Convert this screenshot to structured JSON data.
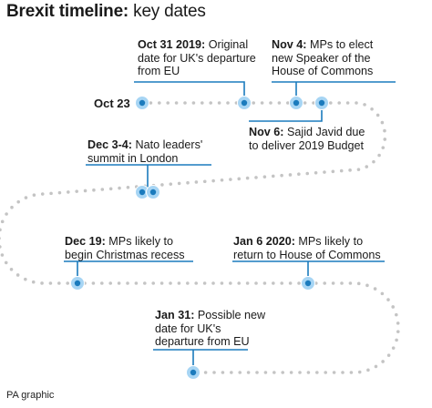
{
  "title": {
    "bold": "Brexit timeline:",
    "regular": " key dates"
  },
  "start_label": "Oct 23",
  "events": [
    {
      "date": "Oct 31 2019:",
      "text": " Original date for UK's departure from EU"
    },
    {
      "date": "Nov 4:",
      "text": " MPs to elect new Speaker of the House of Commons"
    },
    {
      "date": "Nov 6:",
      "text": " Sajid Javid due to deliver 2019 Budget"
    },
    {
      "date": "Dec 3-4:",
      "text": " Nato leaders' summit in London"
    },
    {
      "date": "Dec 19:",
      "text": " MPs likely to begin Christmas recess"
    },
    {
      "date": "Jan 6 2020:",
      "text": " MPs likely to return to House of Commons"
    },
    {
      "date": "Jan 31:",
      "text": " Possible new date for UK's departure from EU"
    }
  ],
  "credit": "PA graphic",
  "colors": {
    "dot": "#c4c4c4",
    "marker_fill": "#1b7bbd",
    "marker_halo": "#a7d5f4",
    "leader_line": "#1b7bbd",
    "text": "#1a1a1a"
  }
}
